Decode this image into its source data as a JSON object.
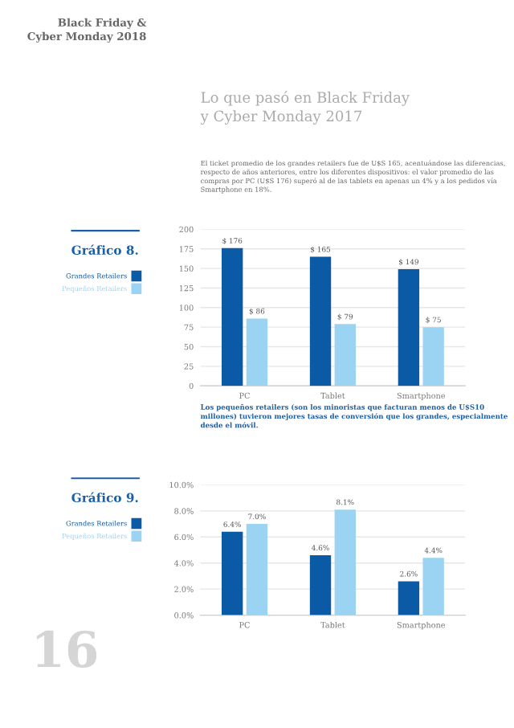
{
  "chart_data": [
    {
      "type": "bar",
      "title": "Gráfico 8.",
      "categories": [
        "PC",
        "Tablet",
        "Smartphone"
      ],
      "series": [
        {
          "name": "Grandes Retailers",
          "color": "#0b5aa6",
          "values": [
            176,
            165,
            149
          ],
          "value_labels": [
            "$ 176",
            "$ 165",
            "$ 149"
          ]
        },
        {
          "name": "Pequeños Retailers",
          "color": "#9bd3f3",
          "values": [
            86,
            79,
            75
          ],
          "value_labels": [
            "$ 86",
            "$ 79",
            "$ 75"
          ]
        }
      ],
      "ylim": [
        0,
        200
      ],
      "yticks": [
        0,
        25,
        50,
        75,
        100,
        125,
        150,
        175,
        200
      ],
      "grid": "y",
      "legend": "left",
      "annotations": [
        "Black Friday &\nCyber Monday 2018",
        "Lo que pasó en Black Friday\ny Cyber Monday 2017",
        "El ticket promedio de los grandes retailers fue de U$S 165, acentuándose las diferencias, respecto de años anteriores, entre los diferentes dispositivos: el valor promedio de las compras por PC (U$S 176) superó al de las tablets en apenas un 4% y a los pedidos vía Smartphone en 18%."
      ]
    },
    {
      "type": "bar",
      "title": "Gráfico 9.",
      "categories": [
        "PC",
        "Tablet",
        "Smartphone"
      ],
      "series": [
        {
          "name": "Grandes Retailers",
          "color": "#0b5aa6",
          "values": [
            6.4,
            4.6,
            2.6
          ],
          "value_labels": [
            "6.4%",
            "4.6%",
            "2.6%"
          ]
        },
        {
          "name": "Pequeños Retailers",
          "color": "#9bd3f3",
          "values": [
            7.0,
            8.1,
            4.4
          ],
          "value_labels": [
            "7.0%",
            "8.1%",
            "4.4%"
          ]
        }
      ],
      "ylim": [
        0,
        10
      ],
      "yticks": [
        {
          "value": 0,
          "label": "0.0%"
        },
        {
          "value": 2,
          "label": "2.0%"
        },
        {
          "value": 4,
          "label": "4.0%"
        },
        {
          "value": 6,
          "label": "6.0%"
        },
        {
          "value": 8,
          "label": "8.0%"
        },
        {
          "value": 10,
          "label": "10.0%"
        }
      ],
      "grid": "y",
      "legend": "left",
      "annotations": [
        "Los pequeños retailers (son los minoristas que facturan menos de U$S10 millones) tuvieron mejores tasas de conversión que los grandes, especialmente desde el móvil.",
        "16"
      ]
    }
  ]
}
